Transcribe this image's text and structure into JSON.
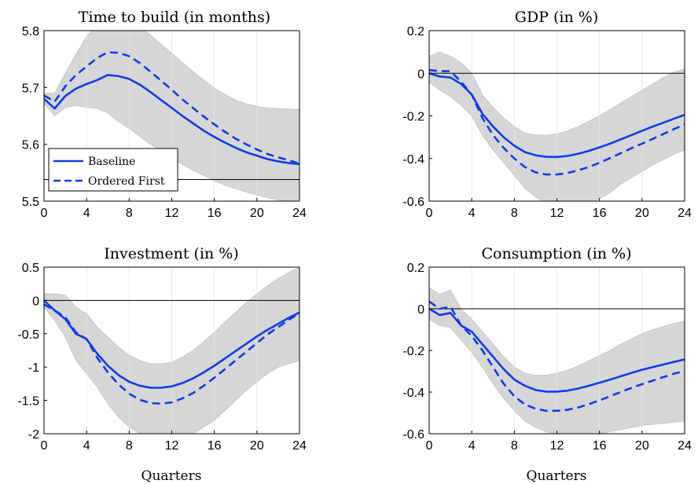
{
  "colors": {
    "series_line": "#0b3cf0",
    "band": "#d6d6d6",
    "band_edge": "#c2c2c2",
    "axis": "#000000",
    "zero_line": "#000000"
  },
  "chart_data": [
    {
      "type": "line",
      "title": "Time to build (in months)",
      "xlabel": "",
      "ylabel": "",
      "xlim": [
        0,
        24
      ],
      "ylim": [
        5.5,
        5.8
      ],
      "xticks": [
        0,
        4,
        8,
        12,
        16,
        20,
        24
      ],
      "yticks": [
        5.5,
        5.6,
        5.7,
        5.8
      ],
      "ytick_labels": [
        "5.5",
        "5.6",
        "5.7",
        "5.8"
      ],
      "grid": "vertical",
      "reference_line": 5.538,
      "legend": {
        "placement": "bottom-left",
        "entries": [
          "Baseline",
          "Ordered First"
        ]
      },
      "x": [
        0,
        1,
        2,
        3,
        4,
        5,
        6,
        7,
        8,
        9,
        10,
        11,
        12,
        13,
        14,
        15,
        16,
        17,
        18,
        19,
        20,
        21,
        22,
        23,
        24
      ],
      "series": [
        {
          "name": "Baseline",
          "style": "solid",
          "values": [
            5.68,
            5.663,
            5.685,
            5.698,
            5.706,
            5.713,
            5.722,
            5.72,
            5.715,
            5.705,
            5.692,
            5.678,
            5.664,
            5.65,
            5.637,
            5.624,
            5.613,
            5.603,
            5.594,
            5.586,
            5.58,
            5.574,
            5.57,
            5.567,
            5.565
          ]
        },
        {
          "name": "Ordered First",
          "style": "dashed",
          "values": [
            5.686,
            5.675,
            5.702,
            5.722,
            5.737,
            5.752,
            5.762,
            5.761,
            5.755,
            5.743,
            5.728,
            5.712,
            5.696,
            5.679,
            5.664,
            5.649,
            5.635,
            5.622,
            5.61,
            5.6,
            5.591,
            5.583,
            5.577,
            5.572,
            5.566
          ]
        }
      ],
      "band": {
        "lower": [
          5.672,
          5.65,
          5.665,
          5.668,
          5.665,
          5.663,
          5.655,
          5.64,
          5.628,
          5.614,
          5.6,
          5.588,
          5.577,
          5.565,
          5.554,
          5.545,
          5.536,
          5.528,
          5.522,
          5.516,
          5.511,
          5.506,
          5.502,
          5.498,
          5.495
        ],
        "upper": [
          5.69,
          5.69,
          5.725,
          5.758,
          5.79,
          5.808,
          5.82,
          5.822,
          5.818,
          5.808,
          5.792,
          5.776,
          5.76,
          5.744,
          5.728,
          5.713,
          5.699,
          5.688,
          5.678,
          5.671,
          5.667,
          5.664,
          5.663,
          5.662,
          5.661
        ]
      }
    },
    {
      "type": "line",
      "title": "GDP (in %)",
      "xlabel": "",
      "ylabel": "",
      "xlim": [
        0,
        24
      ],
      "ylim": [
        -0.6,
        0.2
      ],
      "xticks": [
        0,
        4,
        8,
        12,
        16,
        20,
        24
      ],
      "yticks": [
        -0.6,
        -0.4,
        -0.2,
        0,
        0.2
      ],
      "ytick_labels": [
        "-0.6",
        "-0.4",
        "-0.2",
        "0",
        "0.2"
      ],
      "grid": "vertical",
      "reference_line": 0,
      "x": [
        0,
        1,
        2,
        3,
        4,
        5,
        6,
        7,
        8,
        9,
        10,
        11,
        12,
        13,
        14,
        15,
        16,
        17,
        18,
        19,
        20,
        21,
        22,
        23,
        24
      ],
      "series": [
        {
          "name": "Baseline",
          "style": "solid",
          "values": [
            0.0,
            -0.015,
            -0.02,
            -0.05,
            -0.1,
            -0.19,
            -0.25,
            -0.3,
            -0.34,
            -0.37,
            -0.385,
            -0.392,
            -0.393,
            -0.388,
            -0.378,
            -0.364,
            -0.348,
            -0.33,
            -0.31,
            -0.29,
            -0.27,
            -0.25,
            -0.232,
            -0.213,
            -0.195
          ]
        },
        {
          "name": "Ordered First",
          "style": "dashed",
          "values": [
            0.015,
            0.01,
            0.01,
            -0.04,
            -0.1,
            -0.21,
            -0.29,
            -0.35,
            -0.4,
            -0.44,
            -0.465,
            -0.475,
            -0.475,
            -0.468,
            -0.455,
            -0.44,
            -0.42,
            -0.398,
            -0.375,
            -0.352,
            -0.33,
            -0.308,
            -0.285,
            -0.262,
            -0.24
          ]
        }
      ],
      "band": {
        "lower": [
          -0.04,
          -0.08,
          -0.11,
          -0.15,
          -0.2,
          -0.29,
          -0.36,
          -0.42,
          -0.48,
          -0.54,
          -0.58,
          -0.61,
          -0.63,
          -0.64,
          -0.63,
          -0.61,
          -0.59,
          -0.56,
          -0.52,
          -0.49,
          -0.46,
          -0.43,
          -0.405,
          -0.38,
          -0.36
        ],
        "upper": [
          0.08,
          0.1,
          0.08,
          0.05,
          0.0,
          -0.1,
          -0.16,
          -0.21,
          -0.25,
          -0.28,
          -0.29,
          -0.29,
          -0.285,
          -0.27,
          -0.25,
          -0.225,
          -0.2,
          -0.17,
          -0.14,
          -0.11,
          -0.08,
          -0.05,
          -0.02,
          0.005,
          0.02
        ]
      }
    },
    {
      "type": "line",
      "title": "Investment (in %)",
      "xlabel": "Quarters",
      "ylabel": "",
      "xlim": [
        0,
        24
      ],
      "ylim": [
        -2,
        0.5
      ],
      "xticks": [
        0,
        4,
        8,
        12,
        16,
        20,
        24
      ],
      "yticks": [
        -2,
        -1.5,
        -1,
        -0.5,
        0,
        0.5
      ],
      "ytick_labels": [
        "-2",
        "-1.5",
        "-1",
        "-0.5",
        "0",
        "0.5"
      ],
      "grid": "vertical",
      "reference_line": 0,
      "x": [
        0,
        1,
        2,
        3,
        4,
        5,
        6,
        7,
        8,
        9,
        10,
        11,
        12,
        13,
        14,
        15,
        16,
        17,
        18,
        19,
        20,
        21,
        22,
        23,
        24
      ],
      "series": [
        {
          "name": "Baseline",
          "style": "solid",
          "values": [
            0.0,
            -0.15,
            -0.28,
            -0.5,
            -0.58,
            -0.8,
            -0.98,
            -1.12,
            -1.22,
            -1.28,
            -1.31,
            -1.31,
            -1.29,
            -1.24,
            -1.17,
            -1.08,
            -0.98,
            -0.87,
            -0.76,
            -0.65,
            -0.54,
            -0.44,
            -0.35,
            -0.26,
            -0.18
          ]
        },
        {
          "name": "Ordered First",
          "style": "dashed",
          "values": [
            -0.06,
            -0.15,
            -0.25,
            -0.48,
            -0.58,
            -0.86,
            -1.08,
            -1.26,
            -1.4,
            -1.49,
            -1.54,
            -1.55,
            -1.53,
            -1.47,
            -1.39,
            -1.28,
            -1.16,
            -1.03,
            -0.9,
            -0.77,
            -0.64,
            -0.51,
            -0.4,
            -0.29,
            -0.19
          ]
        }
      ],
      "band": {
        "lower": [
          -0.1,
          -0.3,
          -0.55,
          -0.9,
          -1.1,
          -1.3,
          -1.55,
          -1.75,
          -1.9,
          -2.0,
          -2.05,
          -2.08,
          -2.08,
          -2.05,
          -2.0,
          -1.9,
          -1.8,
          -1.65,
          -1.5,
          -1.35,
          -1.22,
          -1.1,
          -1.0,
          -0.95,
          -0.9
        ],
        "upper": [
          0.1,
          0.1,
          0.08,
          -0.1,
          -0.2,
          -0.4,
          -0.55,
          -0.7,
          -0.82,
          -0.9,
          -0.95,
          -0.95,
          -0.93,
          -0.85,
          -0.75,
          -0.62,
          -0.48,
          -0.32,
          -0.18,
          -0.03,
          0.1,
          0.22,
          0.33,
          0.42,
          0.5
        ]
      }
    },
    {
      "type": "line",
      "title": "Consumption (in %)",
      "xlabel": "Quarters",
      "ylabel": "",
      "xlim": [
        0,
        24
      ],
      "ylim": [
        -0.6,
        0.2
      ],
      "xticks": [
        0,
        4,
        8,
        12,
        16,
        20,
        24
      ],
      "yticks": [
        -0.6,
        -0.4,
        -0.2,
        0,
        0.2
      ],
      "ytick_labels": [
        "-0.6",
        "-0.4",
        "-0.2",
        "0",
        "0.2"
      ],
      "grid": "vertical",
      "reference_line": 0,
      "x": [
        0,
        1,
        2,
        3,
        4,
        5,
        6,
        7,
        8,
        9,
        10,
        11,
        12,
        13,
        14,
        15,
        16,
        17,
        18,
        19,
        20,
        21,
        22,
        23,
        24
      ],
      "series": [
        {
          "name": "Baseline",
          "style": "solid",
          "values": [
            0.0,
            -0.03,
            -0.02,
            -0.08,
            -0.11,
            -0.17,
            -0.23,
            -0.29,
            -0.34,
            -0.37,
            -0.39,
            -0.398,
            -0.398,
            -0.393,
            -0.383,
            -0.37,
            -0.355,
            -0.34,
            -0.324,
            -0.308,
            -0.293,
            -0.28,
            -0.268,
            -0.255,
            -0.243
          ]
        },
        {
          "name": "Ordered First",
          "style": "dashed",
          "values": [
            0.035,
            0.0,
            0.01,
            -0.08,
            -0.13,
            -0.2,
            -0.28,
            -0.36,
            -0.42,
            -0.46,
            -0.48,
            -0.49,
            -0.49,
            -0.485,
            -0.474,
            -0.458,
            -0.44,
            -0.42,
            -0.4,
            -0.38,
            -0.362,
            -0.345,
            -0.328,
            -0.312,
            -0.298
          ]
        }
      ],
      "band": {
        "lower": [
          -0.05,
          -0.08,
          -0.09,
          -0.15,
          -0.21,
          -0.28,
          -0.36,
          -0.43,
          -0.49,
          -0.54,
          -0.57,
          -0.59,
          -0.6,
          -0.61,
          -0.61,
          -0.61,
          -0.6,
          -0.59,
          -0.58,
          -0.57,
          -0.56,
          -0.555,
          -0.55,
          -0.545,
          -0.54
        ],
        "upper": [
          0.1,
          0.07,
          0.09,
          0.0,
          -0.05,
          -0.11,
          -0.17,
          -0.23,
          -0.28,
          -0.31,
          -0.32,
          -0.318,
          -0.31,
          -0.295,
          -0.275,
          -0.25,
          -0.225,
          -0.2,
          -0.17,
          -0.145,
          -0.12,
          -0.1,
          -0.085,
          -0.07,
          -0.06
        ]
      }
    }
  ]
}
